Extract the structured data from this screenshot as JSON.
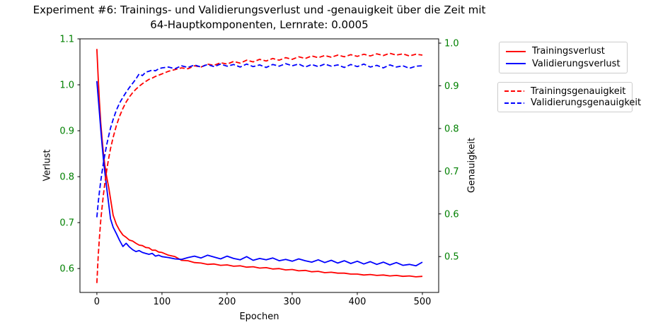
{
  "title": {
    "line1": "Experiment #6: Trainings- und Validierungsverlust und -genauigkeit über die Zeit mit",
    "line2": "64-Hauptkomponenten, Lernrate: 0.0005"
  },
  "axes": {
    "x": {
      "label": "Epochen",
      "ticks": [
        0,
        100,
        200,
        300,
        400,
        500
      ],
      "color": "#000000"
    },
    "left": {
      "label": "Verlust",
      "ticks": [
        0.6,
        0.7,
        0.8,
        0.9,
        1.0,
        1.1
      ],
      "color": "#008000"
    },
    "right": {
      "label": "Genauigkeit",
      "ticks": [
        0.5,
        0.6,
        0.7,
        0.8,
        0.9,
        1.0
      ],
      "color": "#008000"
    }
  },
  "legend": {
    "loss": [
      {
        "label": "Trainingsverlust",
        "color": "#ff0000",
        "style": "solid"
      },
      {
        "label": "Validierungsverlust",
        "color": "#0000ff",
        "style": "solid"
      }
    ],
    "accuracy": [
      {
        "label": "Trainingsgenauigkeit",
        "color": "#ff0000",
        "style": "dashed"
      },
      {
        "label": "Validierungsgenauigkeit",
        "color": "#0000ff",
        "style": "dashed"
      }
    ]
  },
  "chart_data": {
    "type": "line",
    "title": "Experiment #6: Trainings- und Validierungsverlust und -genauigkeit über die Zeit mit 64-Hauptkomponenten, Lernrate: 0.0005",
    "xlabel": "Epochen",
    "ylabel_left": "Verlust",
    "ylabel_right": "Genauigkeit",
    "xlim": [
      -26,
      525
    ],
    "ylim_left": [
      0.548,
      1.1
    ],
    "ylim_right": [
      0.416,
      1.01
    ],
    "grid": false,
    "x": [
      0,
      2,
      4,
      6,
      8,
      10,
      12,
      15,
      18,
      21,
      25,
      30,
      35,
      40,
      45,
      50,
      55,
      60,
      65,
      70,
      75,
      80,
      85,
      90,
      95,
      100,
      110,
      120,
      130,
      140,
      150,
      160,
      170,
      180,
      190,
      200,
      210,
      220,
      230,
      240,
      250,
      260,
      270,
      280,
      290,
      300,
      310,
      320,
      330,
      340,
      350,
      360,
      370,
      380,
      390,
      400,
      410,
      420,
      430,
      440,
      450,
      460,
      470,
      480,
      490,
      500
    ],
    "series": [
      {
        "name": "Trainingsverlust",
        "axis": "left",
        "color": "#ff0000",
        "style": "solid",
        "values": [
          1.078,
          1.015,
          0.962,
          0.917,
          0.882,
          0.852,
          0.827,
          0.8,
          0.778,
          0.752,
          0.716,
          0.696,
          0.683,
          0.673,
          0.668,
          0.662,
          0.66,
          0.655,
          0.651,
          0.65,
          0.646,
          0.645,
          0.64,
          0.64,
          0.636,
          0.635,
          0.629,
          0.626,
          0.618,
          0.617,
          0.613,
          0.612,
          0.609,
          0.61,
          0.607,
          0.608,
          0.605,
          0.606,
          0.603,
          0.604,
          0.601,
          0.602,
          0.599,
          0.6,
          0.597,
          0.598,
          0.595,
          0.596,
          0.593,
          0.594,
          0.591,
          0.592,
          0.59,
          0.59,
          0.588,
          0.588,
          0.586,
          0.587,
          0.585,
          0.586,
          0.584,
          0.585,
          0.583,
          0.584,
          0.582,
          0.583
        ]
      },
      {
        "name": "Validierungsverlust",
        "axis": "left",
        "color": "#0000ff",
        "style": "solid",
        "values": [
          1.008,
          0.972,
          0.938,
          0.903,
          0.869,
          0.839,
          0.812,
          0.777,
          0.742,
          0.708,
          0.69,
          0.676,
          0.661,
          0.648,
          0.655,
          0.647,
          0.641,
          0.637,
          0.639,
          0.635,
          0.633,
          0.631,
          0.633,
          0.627,
          0.629,
          0.626,
          0.624,
          0.621,
          0.62,
          0.624,
          0.627,
          0.623,
          0.629,
          0.625,
          0.621,
          0.627,
          0.622,
          0.619,
          0.626,
          0.618,
          0.622,
          0.619,
          0.623,
          0.617,
          0.62,
          0.616,
          0.621,
          0.617,
          0.614,
          0.619,
          0.613,
          0.618,
          0.612,
          0.617,
          0.611,
          0.616,
          0.61,
          0.615,
          0.609,
          0.614,
          0.608,
          0.613,
          0.607,
          0.609,
          0.606,
          0.614
        ]
      },
      {
        "name": "Trainingsgenauigkeit",
        "axis": "right",
        "color": "#ff0000",
        "style": "dashed",
        "values": [
          0.438,
          0.501,
          0.546,
          0.585,
          0.616,
          0.644,
          0.669,
          0.701,
          0.729,
          0.753,
          0.779,
          0.807,
          0.829,
          0.847,
          0.862,
          0.874,
          0.884,
          0.892,
          0.899,
          0.905,
          0.91,
          0.915,
          0.918,
          0.922,
          0.925,
          0.928,
          0.934,
          0.938,
          0.942,
          0.94,
          0.947,
          0.944,
          0.951,
          0.948,
          0.954,
          0.951,
          0.957,
          0.953,
          0.96,
          0.956,
          0.962,
          0.958,
          0.964,
          0.96,
          0.966,
          0.962,
          0.968,
          0.964,
          0.97,
          0.966,
          0.971,
          0.967,
          0.972,
          0.968,
          0.973,
          0.969,
          0.974,
          0.97,
          0.975,
          0.971,
          0.976,
          0.972,
          0.975,
          0.97,
          0.974,
          0.972
        ]
      },
      {
        "name": "Validierungsgenauigkeit",
        "axis": "right",
        "color": "#0000ff",
        "style": "dashed",
        "values": [
          0.592,
          0.626,
          0.653,
          0.677,
          0.699,
          0.719,
          0.737,
          0.761,
          0.782,
          0.801,
          0.821,
          0.843,
          0.86,
          0.873,
          0.885,
          0.896,
          0.906,
          0.916,
          0.928,
          0.924,
          0.932,
          0.934,
          0.937,
          0.935,
          0.94,
          0.942,
          0.944,
          0.94,
          0.947,
          0.943,
          0.949,
          0.944,
          0.95,
          0.945,
          0.951,
          0.946,
          0.95,
          0.944,
          0.951,
          0.945,
          0.949,
          0.943,
          0.95,
          0.946,
          0.952,
          0.947,
          0.951,
          0.944,
          0.95,
          0.945,
          0.951,
          0.946,
          0.949,
          0.943,
          0.95,
          0.945,
          0.951,
          0.944,
          0.948,
          0.942,
          0.949,
          0.944,
          0.947,
          0.941,
          0.946,
          0.947
        ]
      }
    ]
  }
}
